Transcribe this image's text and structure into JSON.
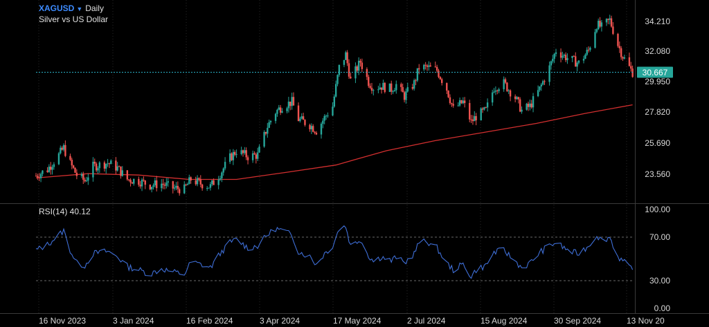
{
  "header": {
    "symbol": "XAGUSD",
    "timeframe": "Daily",
    "instrument": "Silver vs US Dollar"
  },
  "rsi_panel": {
    "label": "RSI(14) 40.12"
  },
  "colors": {
    "background": "#000000",
    "bull_candle": "#26a69a",
    "bear_candle": "#ef5350",
    "moving_average": "#d32f2f",
    "rsi_line": "#3f6fd8",
    "last_price_badge": "#26a69a",
    "separator": "#3a3a3a",
    "axis_text": "#d8d8d8"
  },
  "chart_data": [
    {
      "type": "candlestick",
      "title": "XAGUSD Daily",
      "subtitle": "Silver vs US Dollar",
      "x_tick_labels": [
        "16 Nov 2023",
        "3 Jan 2024",
        "16 Feb 2024",
        "3 Apr 2024",
        "17 May 2024",
        "2 Jul 2024",
        "15 Aug 2024",
        "30 Sep 2024",
        "13 Nov 20"
      ],
      "x_range": [
        "2023-11-13",
        "2024-11-14"
      ],
      "y_tick_labels": [
        "34.210",
        "32.080",
        "29.950",
        "27.820",
        "25.690",
        "23.560"
      ],
      "ylim": [
        22.0,
        35.2
      ],
      "last_price": 30.667,
      "last_price_label": "30.667",
      "grid": "dotted vertical lines at date ticks",
      "close_series": {
        "name": "",
        "points": [
          [
            "2023-11-13",
            23.45
          ],
          [
            "2023-11-20",
            23.9
          ],
          [
            "2023-11-27",
            24.9
          ],
          [
            "2023-11-30",
            25.4
          ],
          [
            "2023-12-04",
            24.3
          ],
          [
            "2023-12-08",
            23.5
          ],
          [
            "2023-12-13",
            23.1
          ],
          [
            "2023-12-18",
            24.1
          ],
          [
            "2023-12-27",
            24.35
          ],
          [
            "2024-01-02",
            24.0
          ],
          [
            "2024-01-08",
            23.2
          ],
          [
            "2024-01-15",
            23.1
          ],
          [
            "2024-01-22",
            22.8
          ],
          [
            "2024-01-29",
            22.9
          ],
          [
            "2024-02-05",
            22.6
          ],
          [
            "2024-02-12",
            22.5
          ],
          [
            "2024-02-16",
            23.2
          ],
          [
            "2024-02-22",
            22.9
          ],
          [
            "2024-02-28",
            22.7
          ],
          [
            "2024-03-05",
            23.6
          ],
          [
            "2024-03-11",
            24.7
          ],
          [
            "2024-03-15",
            25.2
          ],
          [
            "2024-03-22",
            24.8
          ],
          [
            "2024-03-28",
            24.9
          ],
          [
            "2024-04-03",
            26.9
          ],
          [
            "2024-04-08",
            27.9
          ],
          [
            "2024-04-12",
            28.3
          ],
          [
            "2024-04-18",
            28.6
          ],
          [
            "2024-04-22",
            27.4
          ],
          [
            "2024-04-29",
            27.0
          ],
          [
            "2024-05-03",
            26.6
          ],
          [
            "2024-05-08",
            27.5
          ],
          [
            "2024-05-13",
            28.3
          ],
          [
            "2024-05-17",
            31.0
          ],
          [
            "2024-05-21",
            31.9
          ],
          [
            "2024-05-24",
            30.1
          ],
          [
            "2024-05-30",
            31.4
          ],
          [
            "2024-06-04",
            30.0
          ],
          [
            "2024-06-07",
            29.6
          ],
          [
            "2024-06-12",
            29.7
          ],
          [
            "2024-06-18",
            29.5
          ],
          [
            "2024-06-21",
            29.8
          ],
          [
            "2024-06-26",
            29.0
          ],
          [
            "2024-07-02",
            29.9
          ],
          [
            "2024-07-05",
            31.0
          ],
          [
            "2024-07-10",
            31.0
          ],
          [
            "2024-07-16",
            30.8
          ],
          [
            "2024-07-22",
            29.5
          ],
          [
            "2024-07-26",
            28.1
          ],
          [
            "2024-08-01",
            28.6
          ],
          [
            "2024-08-06",
            27.2
          ],
          [
            "2024-08-09",
            27.6
          ],
          [
            "2024-08-15",
            28.0
          ],
          [
            "2024-08-20",
            29.6
          ],
          [
            "2024-08-26",
            29.9
          ],
          [
            "2024-09-02",
            28.9
          ],
          [
            "2024-09-06",
            28.0
          ],
          [
            "2024-09-11",
            28.3
          ],
          [
            "2024-09-17",
            29.5
          ],
          [
            "2024-09-23",
            31.0
          ],
          [
            "2024-09-27",
            32.2
          ],
          [
            "2024-10-02",
            31.8
          ],
          [
            "2024-10-07",
            31.5
          ],
          [
            "2024-10-11",
            31.3
          ],
          [
            "2024-10-17",
            32.2
          ],
          [
            "2024-10-22",
            34.0
          ],
          [
            "2024-10-25",
            33.8
          ],
          [
            "2024-10-30",
            34.3
          ],
          [
            "2024-11-04",
            32.6
          ],
          [
            "2024-11-07",
            31.8
          ],
          [
            "2024-11-11",
            31.0
          ],
          [
            "2024-11-13",
            30.667
          ]
        ]
      },
      "series": [
        {
          "name": "",
          "kind": "moving_average",
          "points": [
            [
              "2023-11-13",
              23.3
            ],
            [
              "2023-12-15",
              23.6
            ],
            [
              "2024-01-15",
              23.5
            ],
            [
              "2024-02-15",
              23.2
            ],
            [
              "2024-03-15",
              23.2
            ],
            [
              "2024-04-15",
              23.7
            ],
            [
              "2024-05-15",
              24.2
            ],
            [
              "2024-06-15",
              25.2
            ],
            [
              "2024-07-15",
              25.9
            ],
            [
              "2024-08-15",
              26.5
            ],
            [
              "2024-09-15",
              27.1
            ],
            [
              "2024-10-15",
              27.8
            ],
            [
              "2024-11-13",
              28.4
            ]
          ]
        }
      ]
    },
    {
      "type": "line",
      "title": "RSI(14) 40.12",
      "ylim": [
        0,
        100
      ],
      "y_tick_labels": [
        "100.00",
        "70.00",
        "30.00",
        "0.00"
      ],
      "levels": [
        70,
        30
      ],
      "series": [
        {
          "name": "",
          "points": [
            [
              "2023-11-13",
              58
            ],
            [
              "2023-11-20",
              63
            ],
            [
              "2023-11-27",
              72
            ],
            [
              "2023-11-30",
              76
            ],
            [
              "2023-12-04",
              58
            ],
            [
              "2023-12-08",
              46
            ],
            [
              "2023-12-13",
              44
            ],
            [
              "2023-12-18",
              55
            ],
            [
              "2023-12-27",
              57
            ],
            [
              "2024-01-02",
              52
            ],
            [
              "2024-01-08",
              43
            ],
            [
              "2024-01-15",
              40
            ],
            [
              "2024-01-22",
              36
            ],
            [
              "2024-01-29",
              41
            ],
            [
              "2024-02-05",
              38
            ],
            [
              "2024-02-12",
              36
            ],
            [
              "2024-02-16",
              47
            ],
            [
              "2024-02-22",
              45
            ],
            [
              "2024-02-28",
              42
            ],
            [
              "2024-03-05",
              55
            ],
            [
              "2024-03-11",
              65
            ],
            [
              "2024-03-15",
              68
            ],
            [
              "2024-03-22",
              60
            ],
            [
              "2024-03-28",
              62
            ],
            [
              "2024-04-03",
              72
            ],
            [
              "2024-04-08",
              78
            ],
            [
              "2024-04-12",
              76
            ],
            [
              "2024-04-18",
              72
            ],
            [
              "2024-04-22",
              57
            ],
            [
              "2024-04-29",
              52
            ],
            [
              "2024-05-03",
              45
            ],
            [
              "2024-05-08",
              55
            ],
            [
              "2024-05-13",
              62
            ],
            [
              "2024-05-17",
              78
            ],
            [
              "2024-05-21",
              80
            ],
            [
              "2024-05-24",
              62
            ],
            [
              "2024-05-30",
              68
            ],
            [
              "2024-06-04",
              53
            ],
            [
              "2024-06-07",
              48
            ],
            [
              "2024-06-12",
              52
            ],
            [
              "2024-06-18",
              48
            ],
            [
              "2024-06-21",
              52
            ],
            [
              "2024-06-26",
              46
            ],
            [
              "2024-07-02",
              55
            ],
            [
              "2024-07-05",
              65
            ],
            [
              "2024-07-10",
              66
            ],
            [
              "2024-07-16",
              60
            ],
            [
              "2024-07-22",
              46
            ],
            [
              "2024-07-26",
              40
            ],
            [
              "2024-08-01",
              45
            ],
            [
              "2024-08-06",
              34
            ],
            [
              "2024-08-09",
              40
            ],
            [
              "2024-08-15",
              44
            ],
            [
              "2024-08-20",
              56
            ],
            [
              "2024-08-26",
              58
            ],
            [
              "2024-09-02",
              48
            ],
            [
              "2024-09-06",
              42
            ],
            [
              "2024-09-11",
              46
            ],
            [
              "2024-09-17",
              56
            ],
            [
              "2024-09-23",
              62
            ],
            [
              "2024-09-27",
              65
            ],
            [
              "2024-10-02",
              60
            ],
            [
              "2024-10-07",
              56
            ],
            [
              "2024-10-11",
              55
            ],
            [
              "2024-10-17",
              62
            ],
            [
              "2024-10-22",
              72
            ],
            [
              "2024-10-25",
              67
            ],
            [
              "2024-10-30",
              70
            ],
            [
              "2024-11-04",
              52
            ],
            [
              "2024-11-07",
              48
            ],
            [
              "2024-11-11",
              42
            ],
            [
              "2024-11-13",
              40.12
            ]
          ]
        }
      ]
    }
  ]
}
